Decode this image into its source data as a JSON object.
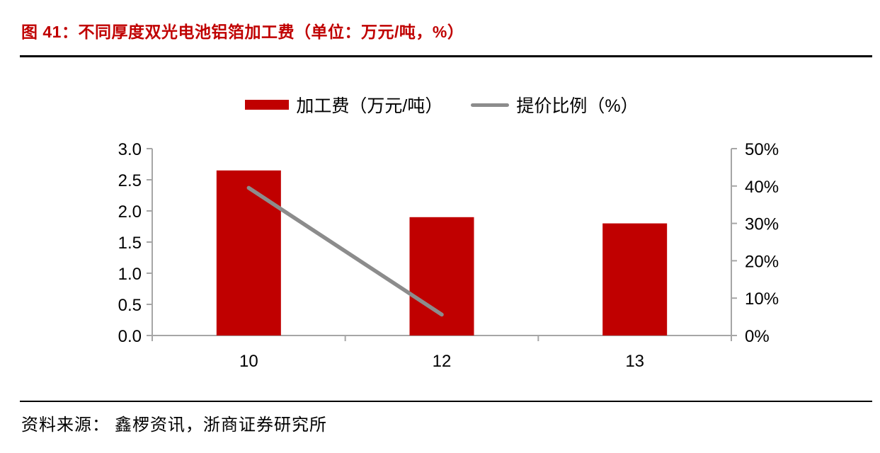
{
  "figure": {
    "title": "图 41：不同厚度双光电池铝箔加工费（单位：万元/吨，%）",
    "source": "资料来源： 鑫椤资讯，浙商证券研究所"
  },
  "colors": {
    "accent_red": "#c00000",
    "line_gray": "#8c8c8c",
    "axis_gray": "#a6a6a6",
    "rule_black": "#000000",
    "text_black": "#000000"
  },
  "chart_data": {
    "type": "bar",
    "title": "不同厚度双光电池铝箔加工费",
    "categories": [
      "10",
      "12",
      "13"
    ],
    "series": [
      {
        "name": "加工费（万元/吨）",
        "type": "bar",
        "axis": "left",
        "color": "#c00000",
        "values": [
          2.65,
          1.9,
          1.8
        ]
      },
      {
        "name": "提价比例（%）",
        "type": "line",
        "axis": "right",
        "color": "#8c8c8c",
        "values": [
          39.5,
          5.6,
          null
        ]
      }
    ],
    "left_axis": {
      "min": 0,
      "max": 3.0,
      "step": 0.5,
      "tick_labels": [
        "0.0",
        "0.5",
        "1.0",
        "1.5",
        "2.0",
        "2.5",
        "3.0"
      ]
    },
    "right_axis": {
      "min": 0,
      "max": 50,
      "step": 10,
      "tick_labels": [
        "0%",
        "10%",
        "20%",
        "30%",
        "40%",
        "50%"
      ]
    },
    "xlabel": "",
    "ylabel_left": "万元/吨",
    "ylabel_right": "%",
    "legend_position": "top",
    "grid": false
  }
}
